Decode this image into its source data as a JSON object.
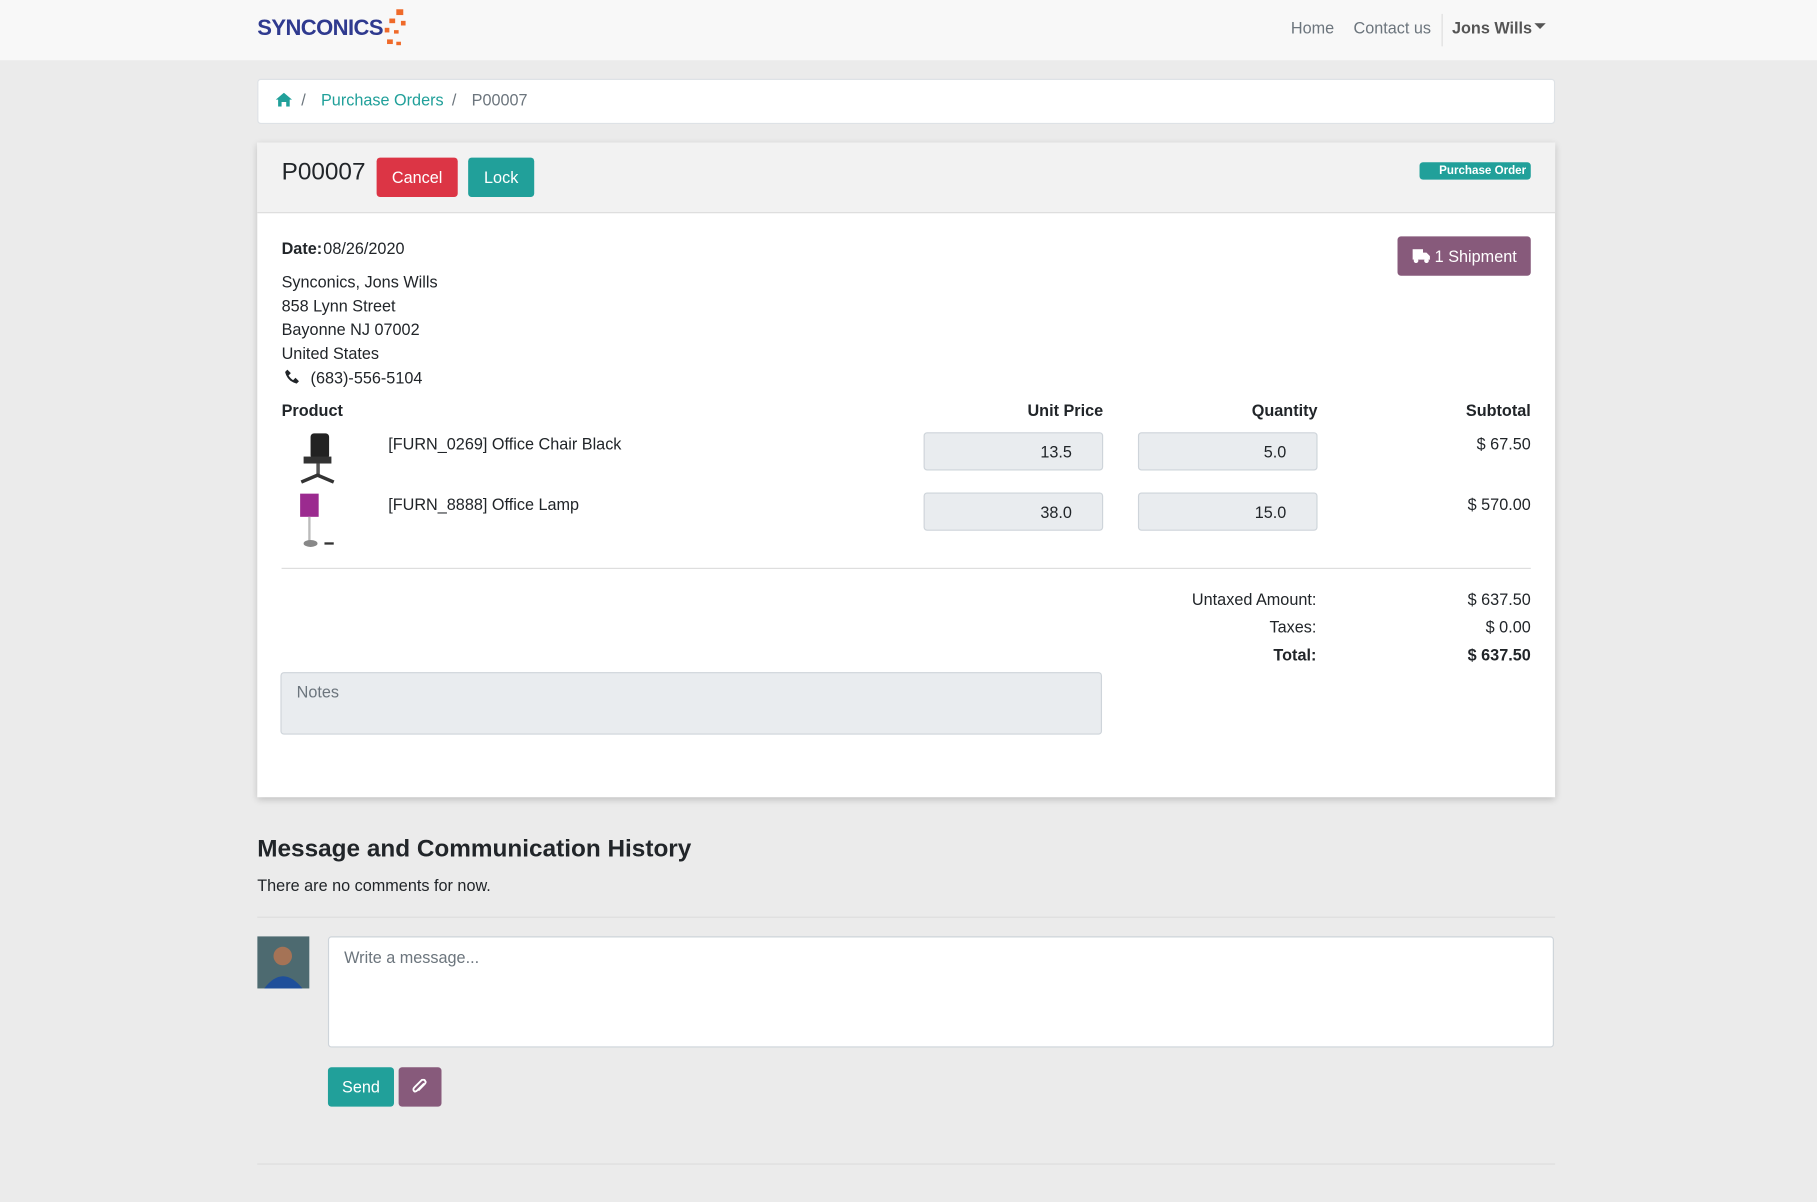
{
  "navbar": {
    "brand": "SYNCONICS",
    "links": [
      "Home",
      "Contact us"
    ],
    "user": "Jons Wills"
  },
  "breadcrumb": {
    "items": [
      "Purchase Orders",
      "P00007"
    ]
  },
  "order": {
    "name": "P00007",
    "buttons": [
      "Cancel",
      "Lock"
    ],
    "badge": "Purchase Order",
    "shipment_button": "1 Shipment",
    "date_label": "Date:",
    "date": "08/26/2020",
    "address": [
      "Synconics, Jons Wills",
      "858 Lynn Street",
      "Bayonne NJ 07002",
      "United States"
    ],
    "phone": "(683)-556-5104",
    "table": {
      "headers": [
        "Product",
        "Unit Price",
        "Quantity",
        "Subtotal"
      ],
      "rows": [
        [
          "[FURN_0269] Office Chair Black",
          "13.5",
          "5.0",
          "$ 67.50"
        ],
        [
          "[FURN_8888] Office Lamp",
          "38.0",
          "15.0",
          "$ 570.00"
        ]
      ]
    },
    "totals": [
      [
        "Untaxed Amount:",
        "$ 637.50"
      ],
      [
        "Taxes:",
        "$ 0.00"
      ],
      [
        "Total:",
        "$ 637.50"
      ]
    ],
    "notes_placeholder": "Notes"
  },
  "history": {
    "title": "Message and Communication History",
    "empty": "There are no comments for now.",
    "message_placeholder": "Write a message...",
    "send": "Send"
  }
}
